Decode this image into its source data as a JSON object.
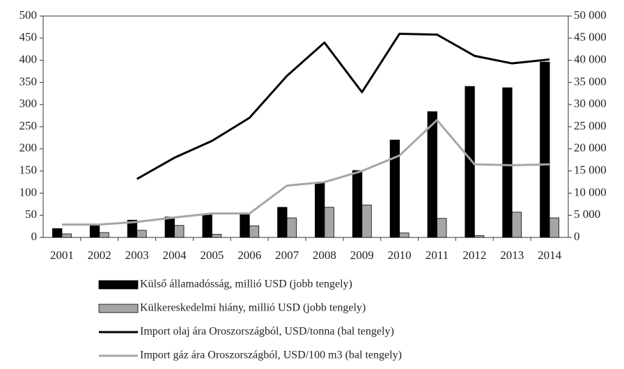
{
  "chart_data": {
    "type": "bar",
    "categories": [
      "2001",
      "2002",
      "2003",
      "2004",
      "2005",
      "2006",
      "2007",
      "2008",
      "2009",
      "2010",
      "2011",
      "2012",
      "2013",
      "2014"
    ],
    "ylim": [
      0,
      500
    ],
    "yticks": [
      0,
      50,
      100,
      150,
      200,
      250,
      300,
      350,
      400,
      450,
      500
    ],
    "y2lim": [
      0,
      50000
    ],
    "y2ticks": [
      0,
      {
        "value": 5000,
        "label": "5 000"
      },
      {
        "value": 10000,
        "label": "10 000"
      },
      {
        "value": 15000,
        "label": "15 000"
      },
      {
        "value": 20000,
        "label": "20 000"
      },
      {
        "value": 25000,
        "label": "25 000"
      },
      {
        "value": 30000,
        "label": "30 000"
      },
      {
        "value": 35000,
        "label": "35 000"
      },
      {
        "value": 40000,
        "label": "40 000"
      },
      {
        "value": 45000,
        "label": "45 000"
      },
      {
        "value": 50000,
        "label": "50 000"
      }
    ],
    "series": [
      {
        "name": "Külső államadósság, millió USD (jobb tengely)",
        "type": "bar",
        "axis": "y2",
        "color": "#000000",
        "values": [
          2000,
          2700,
          3900,
          4600,
          5100,
          5400,
          6800,
          12300,
          15100,
          22000,
          28400,
          34100,
          33800,
          39600
        ]
      },
      {
        "name": "Külkereskedelmi hiány, millió USD (jobb tengely)",
        "type": "bar",
        "axis": "y2",
        "color": "#a6a6a6",
        "values": [
          800,
          1100,
          1600,
          2700,
          700,
          2600,
          4400,
          6800,
          7300,
          1000,
          4300,
          400,
          5700,
          4400
        ]
      },
      {
        "name": "Import olaj ára Oroszországból, USD/tonna (bal tengely)",
        "type": "line",
        "color": "#000000",
        "values": [
          null,
          null,
          132,
          180,
          218,
          270,
          365,
          440,
          328,
          460,
          458,
          410,
          393,
          402
        ]
      },
      {
        "name": "Import gáz ára Oroszországból, USD/100 m3 (bal tengely)",
        "type": "line",
        "color": "#a6a6a6",
        "values": [
          29,
          29,
          35,
          45,
          54,
          54,
          117,
          125,
          150,
          185,
          265,
          165,
          163,
          165
        ]
      }
    ]
  }
}
